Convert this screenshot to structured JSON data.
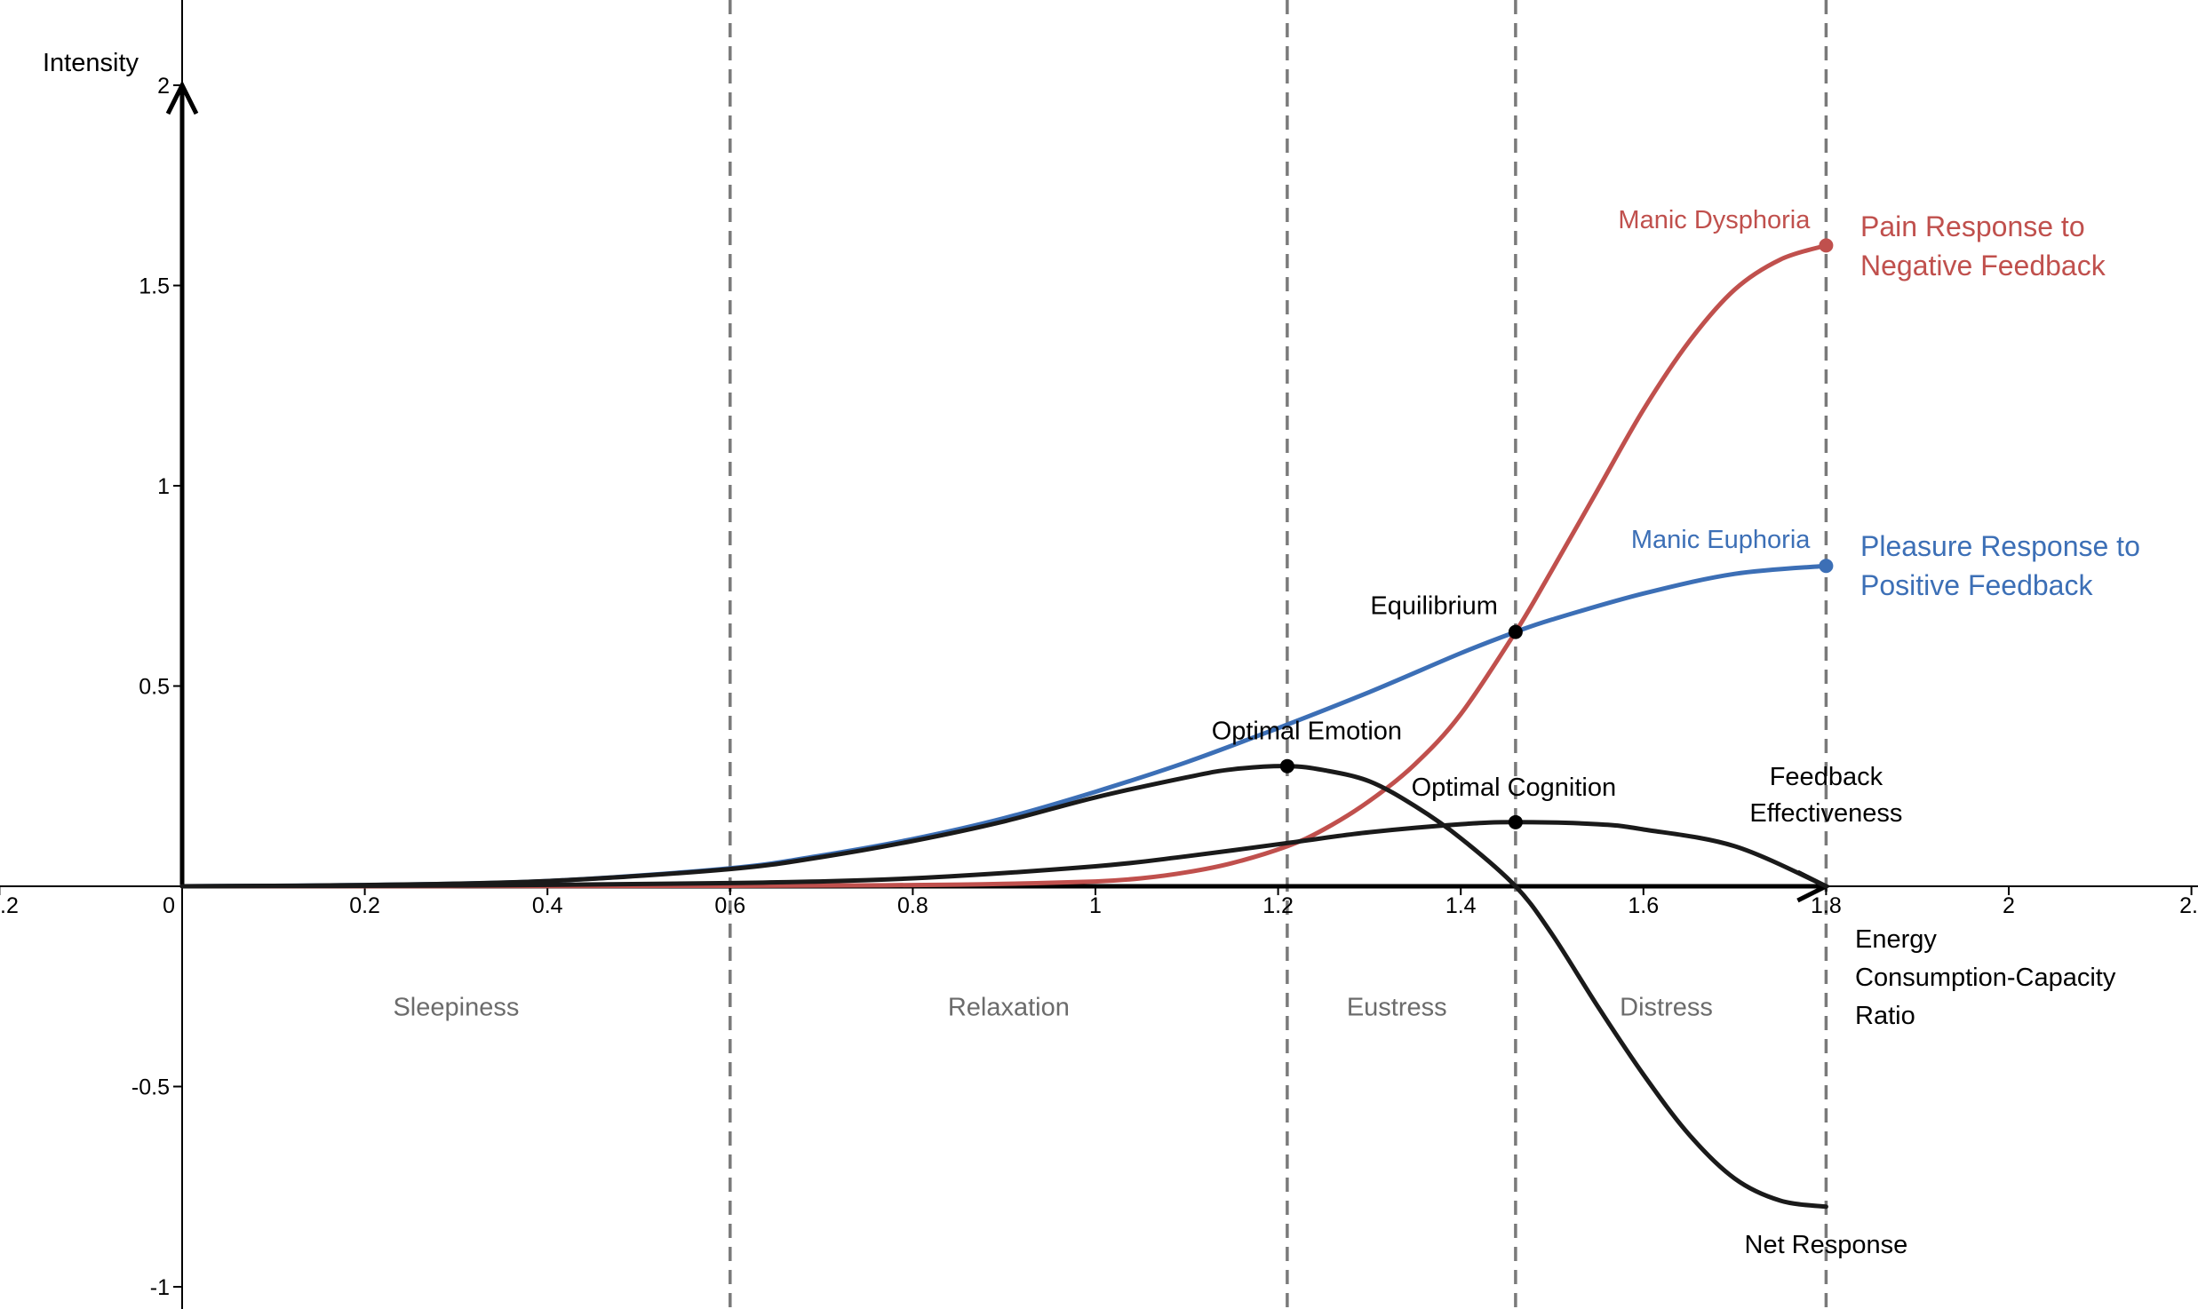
{
  "chart_data": {
    "type": "line",
    "title": "",
    "xlabel_lines": [
      "Energy",
      "Consumption-Capacity",
      "Ratio"
    ],
    "ylabel": "Intensity",
    "xlim": [
      -0.2,
      2.2
    ],
    "ylim": [
      -1.05,
      2.2
    ],
    "x_ticks": [
      {
        "value": -0.2,
        "label": ".2"
      },
      {
        "value": 0,
        "label": "0"
      },
      {
        "value": 0.2,
        "label": "0.2"
      },
      {
        "value": 0.4,
        "label": "0.4"
      },
      {
        "value": 0.6,
        "label": "0.6"
      },
      {
        "value": 0.8,
        "label": "0.8"
      },
      {
        "value": 1,
        "label": "1"
      },
      {
        "value": 1.2,
        "label": "1.2"
      },
      {
        "value": 1.4,
        "label": "1.4"
      },
      {
        "value": 1.6,
        "label": "1.6"
      },
      {
        "value": 1.8,
        "label": "1.8"
      },
      {
        "value": 2,
        "label": "2"
      },
      {
        "value": 2.2,
        "label": "2."
      }
    ],
    "y_ticks": [
      {
        "value": -1,
        "label": "-1"
      },
      {
        "value": -0.5,
        "label": "-0.5"
      },
      {
        "value": 0.5,
        "label": "0.5"
      },
      {
        "value": 1,
        "label": "1"
      },
      {
        "value": 1.5,
        "label": "1.5"
      },
      {
        "value": 2,
        "label": "2"
      }
    ],
    "dividers": [
      0.6,
      1.21,
      1.46,
      1.8
    ],
    "regions": [
      {
        "label": "Sleepiness",
        "x": 0.3
      },
      {
        "label": "Relaxation",
        "x": 0.905
      },
      {
        "label": "Eustress",
        "x": 1.33
      },
      {
        "label": "Distress",
        "x": 1.625
      }
    ],
    "region_label_y": -0.3,
    "series": [
      {
        "color": "#3c6fb6",
        "label_lines": [
          "Pleasure Response to",
          "Positive Feedback"
        ],
        "end_annotation": "Manic Euphoria",
        "x": [
          0,
          0.2,
          0.4,
          0.6,
          0.7,
          0.8,
          0.9,
          1.0,
          1.1,
          1.2,
          1.3,
          1.4,
          1.46,
          1.5,
          1.6,
          1.7,
          1.8
        ],
        "y": [
          0,
          0.003,
          0.013,
          0.045,
          0.077,
          0.118,
          0.17,
          0.236,
          0.31,
          0.395,
          0.485,
          0.582,
          0.635,
          0.666,
          0.731,
          0.78,
          0.8
        ]
      },
      {
        "color": "#c0504d",
        "label_lines": [
          "Pain Response to",
          "Negative Feedback"
        ],
        "end_annotation": "Manic Dysphoria",
        "x": [
          0,
          0.6,
          0.8,
          0.9,
          1.0,
          1.05,
          1.1,
          1.15,
          1.21,
          1.25,
          1.3,
          1.35,
          1.4,
          1.46,
          1.5,
          1.55,
          1.6,
          1.65,
          1.7,
          1.75,
          1.8
        ],
        "y": [
          0,
          0.001,
          0.003,
          0.006,
          0.012,
          0.02,
          0.035,
          0.058,
          0.1,
          0.142,
          0.213,
          0.305,
          0.43,
          0.635,
          0.79,
          0.99,
          1.19,
          1.36,
          1.49,
          1.565,
          1.6
        ]
      },
      {
        "color": "#1a1a1a",
        "label_lines": [
          "Net Response"
        ],
        "x": [
          0,
          0.2,
          0.4,
          0.6,
          0.7,
          0.8,
          0.9,
          1.0,
          1.1,
          1.15,
          1.21,
          1.25,
          1.3,
          1.35,
          1.4,
          1.46,
          1.5,
          1.55,
          1.6,
          1.65,
          1.7,
          1.75,
          1.8
        ],
        "y": [
          0,
          0.003,
          0.013,
          0.043,
          0.073,
          0.113,
          0.162,
          0.222,
          0.272,
          0.292,
          0.3,
          0.29,
          0.262,
          0.2,
          0.12,
          0.0,
          -0.12,
          -0.3,
          -0.47,
          -0.62,
          -0.73,
          -0.785,
          -0.8
        ]
      },
      {
        "color": "#1a1a1a",
        "label_lines": [
          "Feedback",
          "Effectiveness"
        ],
        "x": [
          0,
          0.3,
          0.6,
          0.8,
          1.0,
          1.1,
          1.21,
          1.3,
          1.4,
          1.46,
          1.55,
          1.6,
          1.7,
          1.8
        ],
        "y": [
          0,
          0.002,
          0.008,
          0.02,
          0.05,
          0.075,
          0.108,
          0.135,
          0.155,
          0.16,
          0.155,
          0.142,
          0.1,
          0.0
        ]
      }
    ],
    "points": [
      {
        "name": "Equilibrium",
        "x": 1.46,
        "y": 0.635,
        "color": "#000000"
      },
      {
        "name": "Optimal Emotion",
        "x": 1.21,
        "y": 0.3,
        "color": "#000000"
      },
      {
        "name": "Optimal Cognition",
        "x": 1.46,
        "y": 0.16,
        "color": "#000000"
      },
      {
        "name": "",
        "x": 1.8,
        "y": 1.6,
        "color": "#c0504d"
      },
      {
        "name": "",
        "x": 1.8,
        "y": 0.8,
        "color": "#3c6fb6"
      }
    ]
  }
}
